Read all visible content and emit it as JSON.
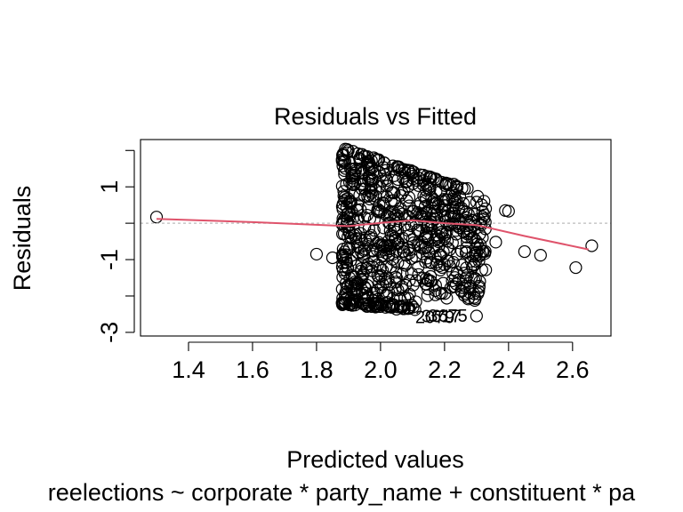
{
  "chart_data": {
    "type": "scatter",
    "title": "Residuals vs Fitted",
    "xlabel": "Predicted values",
    "ylabel": "Residuals",
    "subtitle": "reelections ~ corporate * party_name + constituent * pa",
    "xlim": [
      1.25,
      2.72
    ],
    "ylim": [
      -3.1,
      2.3
    ],
    "x_ticks": [
      1.4,
      1.6,
      1.8,
      2.0,
      2.2,
      2.4,
      2.6
    ],
    "x_tick_labels": [
      "1.4",
      "1.6",
      "1.8",
      "2.0",
      "2.2",
      "2.4",
      "2.6"
    ],
    "y_ticks": [
      -3,
      -2,
      -1,
      0,
      1,
      2
    ],
    "y_tick_labels": [
      "-3",
      "",
      "-1",
      "",
      "1",
      ""
    ],
    "reference_line": {
      "y": 0,
      "style": "dotted",
      "color": "#bbbbbb"
    },
    "smooth_line": {
      "color": "#DF536B",
      "points": [
        [
          1.3,
          0.12
        ],
        [
          1.6,
          0.03
        ],
        [
          1.9,
          -0.08
        ],
        [
          2.0,
          0.01
        ],
        [
          2.1,
          0.08
        ],
        [
          2.2,
          0.0
        ],
        [
          2.3,
          -0.05
        ],
        [
          2.45,
          -0.35
        ],
        [
          2.65,
          -0.72
        ]
      ]
    },
    "outlier_labels": [
      {
        "text": "2079",
        "x": 2.17,
        "y": -2.6
      },
      {
        "text": "3617",
        "x": 2.19,
        "y": -2.58
      },
      {
        "text": "3675",
        "x": 2.21,
        "y": -2.56
      }
    ],
    "points_extra": [
      [
        1.3,
        0.17
      ],
      [
        1.8,
        -0.85
      ],
      [
        1.85,
        -0.95
      ],
      [
        2.3,
        0.58
      ],
      [
        2.39,
        0.35
      ],
      [
        2.4,
        0.33
      ],
      [
        2.31,
        -0.3
      ],
      [
        2.36,
        -0.52
      ],
      [
        2.45,
        -0.78
      ],
      [
        2.5,
        -0.88
      ],
      [
        2.61,
        -1.22
      ],
      [
        2.66,
        -0.62
      ],
      [
        2.31,
        -1.6
      ],
      [
        2.3,
        -2.55
      ],
      [
        2.24,
        -0.85
      ],
      [
        2.27,
        -0.15
      ]
    ],
    "grid": false,
    "legend": "none"
  }
}
